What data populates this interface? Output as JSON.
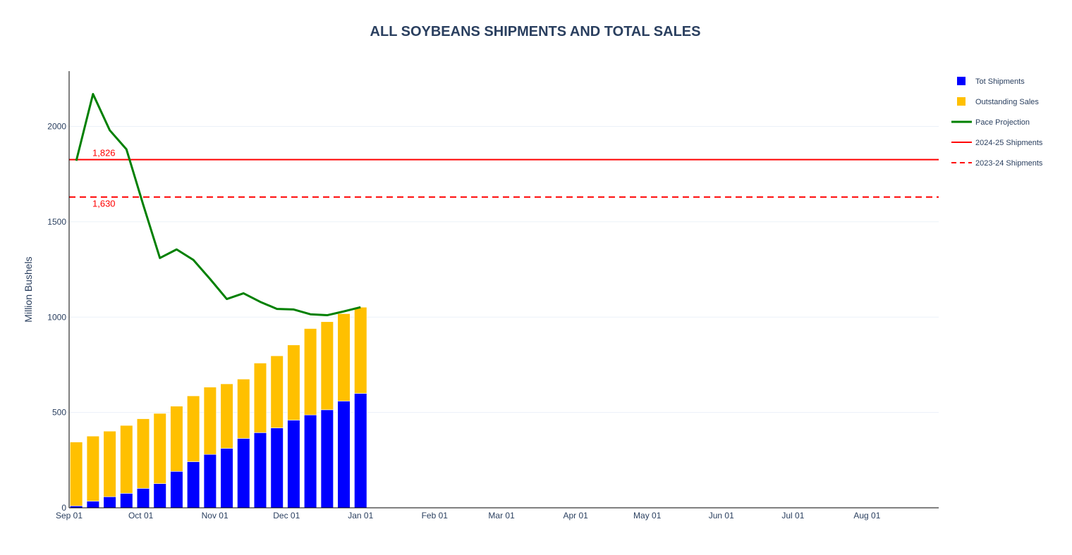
{
  "chart_data": {
    "type": "bar",
    "title": "ALL SOYBEANS SHIPMENTS AND TOTAL SALES",
    "xlabel": "",
    "ylabel": "Million Bushels",
    "ylim": [
      0,
      2290
    ],
    "y_ticks": [
      0,
      500,
      1000,
      1500,
      2000
    ],
    "x_range": [
      "2025-09-01",
      "2026-08-31"
    ],
    "x_ticks": [
      {
        "date": "2025-09-01",
        "label": "Sep 01"
      },
      {
        "date": "2025-10-01",
        "label": "Oct 01"
      },
      {
        "date": "2025-11-01",
        "label": "Nov 01"
      },
      {
        "date": "2025-12-01",
        "label": "Dec 01"
      },
      {
        "date": "2026-01-01",
        "label": "Jan 01"
      },
      {
        "date": "2026-02-01",
        "label": "Feb 01"
      },
      {
        "date": "2026-03-01",
        "label": "Mar 01"
      },
      {
        "date": "2026-04-01",
        "label": "Apr 01"
      },
      {
        "date": "2026-05-01",
        "label": "May 01"
      },
      {
        "date": "2026-06-01",
        "label": "Jun 01"
      },
      {
        "date": "2026-07-01",
        "label": "Jul 01"
      },
      {
        "date": "2026-08-01",
        "label": "Aug 01"
      }
    ],
    "grid": true,
    "barmode": "stack",
    "dates": [
      "2025-09-04",
      "2025-09-11",
      "2025-09-18",
      "2025-09-25",
      "2025-10-02",
      "2025-10-09",
      "2025-10-16",
      "2025-10-23",
      "2025-10-30",
      "2025-11-06",
      "2025-11-13",
      "2025-11-20",
      "2025-11-27",
      "2025-12-04",
      "2025-12-11",
      "2025-12-18",
      "2025-12-25",
      "2026-01-01"
    ],
    "series": [
      {
        "name": "Tot Shipments",
        "kind": "bar",
        "color": "#0000ff",
        "values": [
          10,
          35,
          58,
          76,
          102,
          127,
          191,
          242,
          280,
          312,
          364,
          394,
          419,
          460,
          487,
          514,
          560,
          600
        ]
      },
      {
        "name": "Outstanding Sales",
        "kind": "bar",
        "color": "#ffc000",
        "values": [
          335,
          341,
          344,
          356,
          365,
          368,
          342,
          345,
          353,
          338,
          311,
          365,
          378,
          394,
          453,
          462,
          458,
          452
        ]
      },
      {
        "name": "Pace Projection",
        "kind": "line",
        "color": "#008000",
        "dates": [
          "2025-09-04",
          "2025-09-11",
          "2025-09-18",
          "2025-09-25",
          "2025-10-02",
          "2025-10-09",
          "2025-10-16",
          "2025-10-23",
          "2025-10-30",
          "2025-11-06",
          "2025-11-13",
          "2025-11-20",
          "2025-11-27",
          "2025-12-04",
          "2025-12-11",
          "2025-12-18",
          "2025-12-25",
          "2026-01-01"
        ],
        "values": [
          1820,
          2170,
          1980,
          1880,
          1590,
          1310,
          1355,
          1300,
          1200,
          1095,
          1125,
          1080,
          1043,
          1040,
          1015,
          1010,
          1030,
          1052
        ]
      }
    ],
    "reference_lines": [
      {
        "name": "2024-25 Shipments",
        "value": 1826,
        "label": "1,826",
        "color": "#ff0000",
        "dash": "solid"
      },
      {
        "name": "2023-24 Shipments",
        "value": 1630,
        "label": "1,630",
        "color": "#ff0000",
        "dash": "dash"
      }
    ],
    "legend": {
      "position": "top-right",
      "items": [
        {
          "name": "Tot Shipments",
          "symbol": "square",
          "color": "#0000ff"
        },
        {
          "name": "Outstanding Sales",
          "symbol": "square",
          "color": "#ffc000"
        },
        {
          "name": "Pace Projection",
          "symbol": "line",
          "color": "#008000"
        },
        {
          "name": "2024-25 Shipments",
          "symbol": "line",
          "color": "#ff0000"
        },
        {
          "name": "2023-24 Shipments",
          "symbol": "dashed-line",
          "color": "#ff0000"
        }
      ]
    }
  }
}
